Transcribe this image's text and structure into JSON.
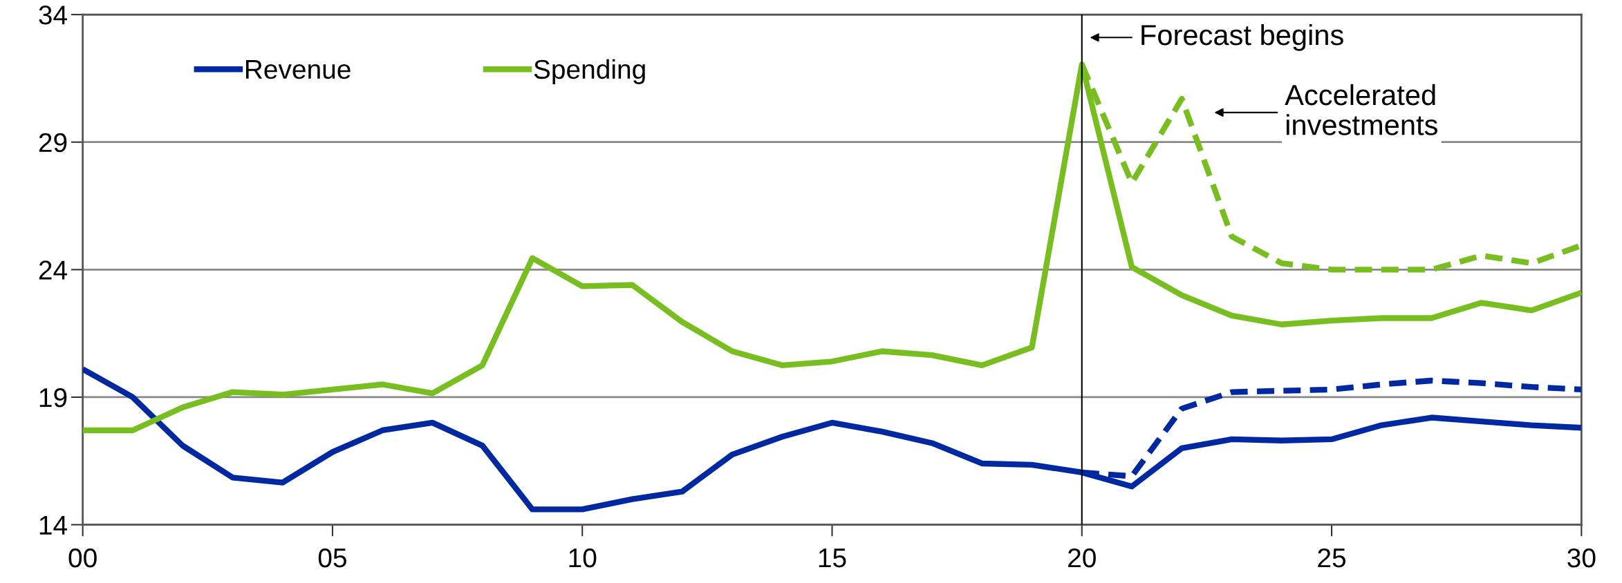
{
  "chart_data": {
    "type": "line",
    "x": [
      0,
      1,
      2,
      3,
      4,
      5,
      6,
      7,
      8,
      9,
      10,
      11,
      12,
      13,
      14,
      15,
      16,
      17,
      18,
      19,
      20,
      21,
      22,
      23,
      24,
      25,
      26,
      27,
      28,
      29,
      30
    ],
    "series": [
      {
        "name": "Revenue",
        "color": "#0028a0",
        "line_style": "solid",
        "values": [
          20.1,
          19.0,
          17.1,
          15.85,
          15.65,
          16.85,
          17.7,
          18.0,
          17.1,
          14.6,
          14.6,
          15.0,
          15.3,
          16.75,
          17.45,
          18.0,
          17.65,
          17.2,
          16.4,
          16.35,
          16.05,
          15.5,
          17.0,
          17.35,
          17.3,
          17.35,
          17.9,
          18.2,
          18.05,
          17.9,
          17.8
        ]
      },
      {
        "name": "Spending",
        "color": "#78be20",
        "line_style": "solid",
        "values": [
          17.7,
          17.7,
          18.6,
          19.2,
          19.1,
          19.3,
          19.5,
          19.15,
          20.25,
          24.45,
          23.35,
          23.4,
          21.95,
          20.8,
          20.25,
          20.4,
          20.8,
          20.65,
          20.25,
          20.95,
          32.05,
          24.1,
          23.0,
          22.2,
          21.85,
          22.0,
          22.1,
          22.1,
          22.7,
          22.4,
          23.1
        ]
      },
      {
        "color": "#0028a0",
        "line_style": "dashed",
        "x": [
          20,
          21,
          22,
          23,
          24,
          25,
          26,
          27,
          28,
          29,
          30
        ],
        "values": [
          16.05,
          15.9,
          18.55,
          19.2,
          19.25,
          19.3,
          19.5,
          19.65,
          19.55,
          19.4,
          19.3
        ]
      },
      {
        "color": "#78be20",
        "line_style": "dashed",
        "x": [
          20,
          21,
          22,
          23,
          24,
          25,
          26,
          27,
          28,
          29,
          30
        ],
        "values": [
          32.05,
          27.4,
          30.7,
          25.3,
          24.25,
          24.0,
          24.0,
          24.0,
          24.55,
          24.25,
          24.95
        ]
      }
    ],
    "xlim": [
      0,
      30
    ],
    "xticks": [
      {
        "value": 0,
        "label": "00"
      },
      {
        "value": 5,
        "label": "05"
      },
      10,
      15,
      20,
      25,
      30
    ],
    "ylim": [
      14,
      34
    ],
    "yticks": [
      14,
      19,
      24,
      29,
      34
    ],
    "ref_lines": [
      {
        "axis": "x",
        "value": 20,
        "color": "#000000",
        "line_style": "solid"
      }
    ],
    "annotations": [
      "Forecast begins",
      "Accelerated\ninvestments"
    ],
    "grid": "y",
    "legend": "top left",
    "marker": "none"
  }
}
